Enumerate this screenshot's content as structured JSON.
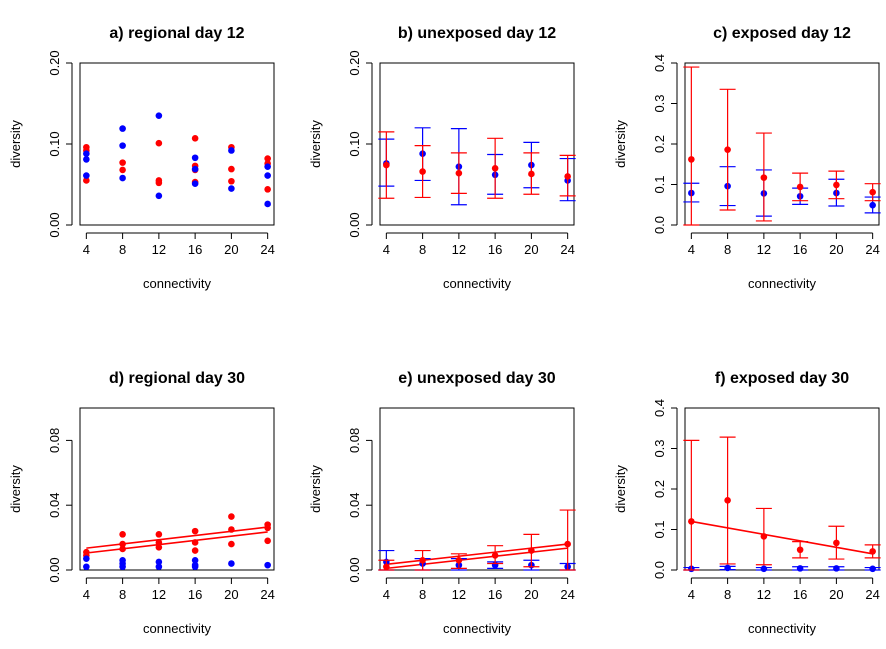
{
  "colors": {
    "red": "#ff0000",
    "blue": "#0000ff",
    "axis": "#000000"
  },
  "xlabel": "connectivity",
  "ylabel": "diversity",
  "chart_data": [
    {
      "id": "a",
      "type": "scatter",
      "title": "a) regional day 12",
      "xlabel": "connectivity",
      "ylabel": "diversity",
      "xticks": [
        4,
        8,
        12,
        16,
        20,
        24
      ],
      "yticks": [
        0.0,
        0.1,
        0.2
      ],
      "ytick_labels": [
        "0.00",
        "0.10",
        "0.20"
      ],
      "ylim": [
        0.0,
        0.2
      ],
      "series": [
        {
          "color": "red",
          "points": [
            [
              4,
              0.096
            ],
            [
              4,
              0.092
            ],
            [
              4,
              0.055
            ],
            [
              8,
              0.077
            ],
            [
              8,
              0.068
            ],
            [
              12,
              0.101
            ],
            [
              12,
              0.055
            ],
            [
              12,
              0.052
            ],
            [
              16,
              0.107
            ],
            [
              16,
              0.073
            ],
            [
              16,
              0.068
            ],
            [
              16,
              0.053
            ],
            [
              20,
              0.096
            ],
            [
              20,
              0.069
            ],
            [
              20,
              0.054
            ],
            [
              24,
              0.082
            ],
            [
              24,
              0.076
            ],
            [
              24,
              0.044
            ]
          ]
        },
        {
          "color": "blue",
          "points": [
            [
              4,
              0.088
            ],
            [
              4,
              0.081
            ],
            [
              4,
              0.061
            ],
            [
              8,
              0.119
            ],
            [
              8,
              0.098
            ],
            [
              8,
              0.058
            ],
            [
              12,
              0.135
            ],
            [
              12,
              0.036
            ],
            [
              16,
              0.083
            ],
            [
              16,
              0.069
            ],
            [
              16,
              0.051
            ],
            [
              20,
              0.092
            ],
            [
              20,
              0.045
            ],
            [
              24,
              0.072
            ],
            [
              24,
              0.061
            ],
            [
              24,
              0.026
            ]
          ]
        }
      ]
    },
    {
      "id": "b",
      "type": "scatter",
      "title": "b) unexposed day 12",
      "xlabel": "connectivity",
      "ylabel": "diversity",
      "xticks": [
        4,
        8,
        12,
        16,
        20,
        24
      ],
      "yticks": [
        0.0,
        0.1,
        0.2
      ],
      "ytick_labels": [
        "0.00",
        "0.10",
        "0.20"
      ],
      "ylim": [
        0.0,
        0.2
      ],
      "series": [
        {
          "color": "blue",
          "points": [
            [
              4,
              0.076,
              0.048,
              0.106
            ],
            [
              8,
              0.088,
              0.055,
              0.12
            ],
            [
              12,
              0.072,
              0.025,
              0.119
            ],
            [
              16,
              0.062,
              0.038,
              0.087
            ],
            [
              20,
              0.074,
              0.046,
              0.102
            ],
            [
              24,
              0.055,
              0.03,
              0.082
            ]
          ]
        },
        {
          "color": "red",
          "points": [
            [
              4,
              0.074,
              0.033,
              0.115
            ],
            [
              8,
              0.066,
              0.034,
              0.098
            ],
            [
              12,
              0.064,
              0.039,
              0.089
            ],
            [
              16,
              0.07,
              0.033,
              0.107
            ],
            [
              20,
              0.063,
              0.038,
              0.089
            ],
            [
              24,
              0.06,
              0.036,
              0.086
            ]
          ]
        }
      ]
    },
    {
      "id": "c",
      "type": "scatter",
      "title": "c) exposed day 12",
      "xlabel": "connectivity",
      "ylabel": "diversity",
      "xticks": [
        4,
        8,
        12,
        16,
        20,
        24
      ],
      "yticks": [
        0.0,
        0.1,
        0.2,
        0.3,
        0.4
      ],
      "ytick_labels": [
        "0.0",
        "0.1",
        "0.2",
        "0.3",
        "0.4"
      ],
      "ylim": [
        0.0,
        0.4
      ],
      "series": [
        {
          "color": "blue",
          "points": [
            [
              4,
              0.079,
              0.057,
              0.103
            ],
            [
              8,
              0.096,
              0.048,
              0.144
            ],
            [
              12,
              0.078,
              0.022,
              0.136
            ],
            [
              16,
              0.071,
              0.051,
              0.091
            ],
            [
              20,
              0.079,
              0.047,
              0.113
            ],
            [
              24,
              0.049,
              0.03,
              0.069
            ]
          ]
        },
        {
          "color": "red",
          "points": [
            [
              4,
              0.162,
              0.0,
              0.39
            ],
            [
              8,
              0.186,
              0.037,
              0.335
            ],
            [
              12,
              0.117,
              0.01,
              0.227
            ],
            [
              16,
              0.094,
              0.06,
              0.128
            ],
            [
              20,
              0.099,
              0.065,
              0.133
            ],
            [
              24,
              0.081,
              0.06,
              0.102
            ]
          ]
        }
      ]
    },
    {
      "id": "d",
      "type": "scatter",
      "title": "d) regional day 30",
      "xlabel": "connectivity",
      "ylabel": "diversity",
      "xticks": [
        4,
        8,
        12,
        16,
        20,
        24
      ],
      "yticks": [
        0.0,
        0.04,
        0.08
      ],
      "ytick_labels": [
        "0.00",
        "0.04",
        "0.08"
      ],
      "ylim": [
        0.0,
        0.1
      ],
      "series": [
        {
          "color": "red",
          "points": [
            [
              4,
              0.011
            ],
            [
              4,
              0.009
            ],
            [
              8,
              0.022
            ],
            [
              8,
              0.016
            ],
            [
              8,
              0.013
            ],
            [
              12,
              0.022
            ],
            [
              12,
              0.017
            ],
            [
              12,
              0.014
            ],
            [
              16,
              0.024
            ],
            [
              16,
              0.017
            ],
            [
              16,
              0.012
            ],
            [
              20,
              0.033
            ],
            [
              20,
              0.025
            ],
            [
              20,
              0.016
            ],
            [
              24,
              0.028
            ],
            [
              24,
              0.026
            ],
            [
              24,
              0.018
            ]
          ]
        },
        {
          "color": "blue",
          "points": [
            [
              4,
              0.007
            ],
            [
              4,
              0.002
            ],
            [
              8,
              0.006
            ],
            [
              8,
              0.004
            ],
            [
              8,
              0.002
            ],
            [
              12,
              0.005
            ],
            [
              12,
              0.002
            ],
            [
              16,
              0.006
            ],
            [
              16,
              0.003
            ],
            [
              16,
              0.002
            ],
            [
              20,
              0.004
            ],
            [
              24,
              0.003
            ]
          ]
        }
      ],
      "lines": [
        {
          "color": "red",
          "x": [
            4,
            24
          ],
          "y": [
            0.0135,
            0.0265
          ]
        },
        {
          "color": "red",
          "x": [
            4,
            24
          ],
          "y": [
            0.0105,
            0.0235
          ]
        }
      ]
    },
    {
      "id": "e",
      "type": "scatter",
      "title": "e) unexposed day 30",
      "xlabel": "connectivity",
      "ylabel": "diversity",
      "xticks": [
        4,
        8,
        12,
        16,
        20,
        24
      ],
      "yticks": [
        0.0,
        0.04,
        0.08
      ],
      "ytick_labels": [
        "0.00",
        "0.04",
        "0.08"
      ],
      "ylim": [
        0.0,
        0.1
      ],
      "series": [
        {
          "color": "blue",
          "points": [
            [
              4,
              0.005,
              0.0,
              0.012
            ],
            [
              8,
              0.004,
              0.0,
              0.007
            ],
            [
              12,
              0.003,
              0.0,
              0.007
            ],
            [
              16,
              0.003,
              0.001,
              0.005
            ],
            [
              20,
              0.003,
              0.0,
              0.006
            ],
            [
              24,
              0.002,
              0.0,
              0.004
            ]
          ]
        },
        {
          "color": "red",
          "points": [
            [
              4,
              0.002,
              0.0,
              0.006
            ],
            [
              8,
              0.006,
              0.0,
              0.012
            ],
            [
              12,
              0.006,
              0.001,
              0.01
            ],
            [
              16,
              0.009,
              0.004,
              0.015
            ],
            [
              20,
              0.012,
              0.002,
              0.022
            ],
            [
              24,
              0.016,
              0.0,
              0.037
            ]
          ]
        }
      ],
      "lines": [
        {
          "color": "red",
          "x": [
            4,
            24
          ],
          "y": [
            0.0035,
            0.016
          ]
        },
        {
          "color": "red",
          "x": [
            4,
            24
          ],
          "y": [
            0.001,
            0.0135
          ]
        }
      ]
    },
    {
      "id": "f",
      "type": "scatter",
      "title": "f) exposed day 30",
      "xlabel": "connectivity",
      "ylabel": "diversity",
      "xticks": [
        4,
        8,
        12,
        16,
        20,
        24
      ],
      "yticks": [
        0.0,
        0.1,
        0.2,
        0.3,
        0.4
      ],
      "ytick_labels": [
        "0.0",
        "0.1",
        "0.2",
        "0.3",
        "0.4"
      ],
      "ylim": [
        0.0,
        0.4
      ],
      "series": [
        {
          "color": "blue",
          "points": [
            [
              4,
              0.003,
              0.0,
              0.006
            ],
            [
              8,
              0.005,
              0.001,
              0.009
            ],
            [
              12,
              0.003,
              0.0,
              0.006
            ],
            [
              16,
              0.004,
              0.0,
              0.008
            ],
            [
              20,
              0.004,
              0.0,
              0.008
            ],
            [
              24,
              0.003,
              0.0,
              0.006
            ]
          ]
        },
        {
          "color": "red",
          "points": [
            [
              4,
              0.12,
              0.0,
              0.32
            ],
            [
              8,
              0.172,
              0.015,
              0.328
            ],
            [
              12,
              0.083,
              0.013,
              0.152
            ],
            [
              16,
              0.05,
              0.03,
              0.07
            ],
            [
              20,
              0.067,
              0.027,
              0.108
            ],
            [
              24,
              0.046,
              0.03,
              0.062
            ]
          ]
        }
      ],
      "lines": [
        {
          "color": "red",
          "x": [
            4,
            24
          ],
          "y": [
            0.12,
            0.04
          ]
        }
      ]
    }
  ]
}
